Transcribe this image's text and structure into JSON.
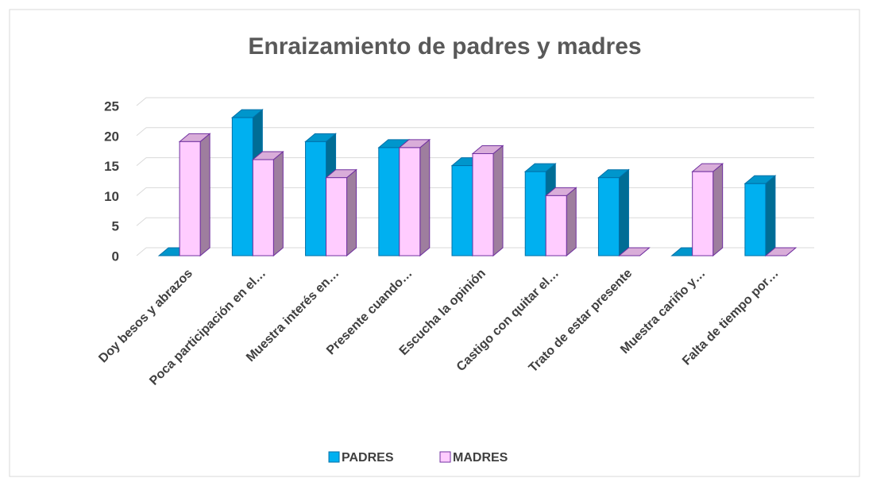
{
  "chart_data": {
    "type": "bar3d",
    "title": "Enraizamiento de padres y madres",
    "categories": [
      "Doy besos y abrazos",
      "Poca participación en el…",
      "Muestra interés en…",
      "Presente cuando…",
      "Escucha la opinión",
      "Castigo con quitar el…",
      "Trato de estar presente",
      "Muestra cariño y…",
      "Falta de tiempo por…"
    ],
    "series": [
      {
        "name": "PADRES",
        "color": "#00b0f0",
        "values": [
          0,
          23,
          19,
          18,
          15,
          14,
          13,
          0,
          12
        ]
      },
      {
        "name": "MADRES",
        "color": "#ffccff",
        "values": [
          19,
          16,
          13,
          18,
          17,
          10,
          0,
          14,
          0
        ]
      }
    ],
    "ylim": [
      0,
      25
    ],
    "yticks": [
      0,
      5,
      10,
      15,
      20,
      25
    ],
    "grid": true,
    "legend": "bottom"
  }
}
